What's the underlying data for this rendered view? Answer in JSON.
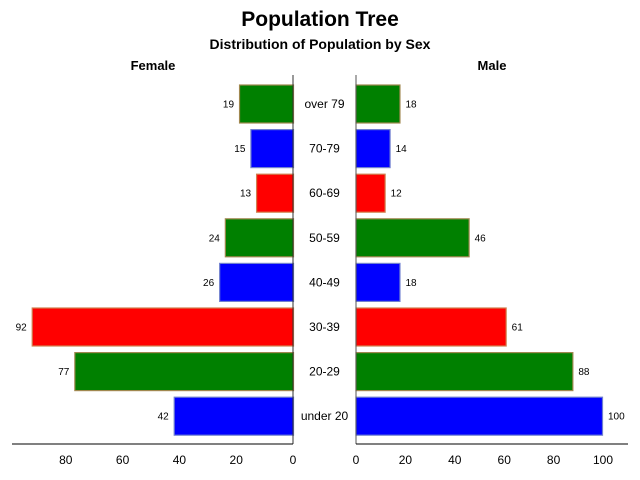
{
  "chart_data": {
    "type": "bar",
    "title": "Population Tree",
    "subtitle": "Distribution of Population by Sex",
    "orientation": "horizontal-back-to-back",
    "categories": [
      "over 79",
      "70-79",
      "60-69",
      "50-59",
      "40-49",
      "30-39",
      "20-29",
      "under 20"
    ],
    "series": [
      {
        "name": "Female",
        "values": [
          19,
          15,
          13,
          24,
          26,
          92,
          77,
          42
        ]
      },
      {
        "name": "Male",
        "values": [
          18,
          14,
          12,
          46,
          18,
          61,
          88,
          100
        ]
      }
    ],
    "bar_colors": [
      "#008000",
      "#0000ff",
      "#ff0000",
      "#008000",
      "#0000ff",
      "#ff0000",
      "#008000",
      "#0000ff"
    ],
    "bar_borders": [
      "#a08850",
      "#7080d0",
      "#d08050",
      "#a08850",
      "#7080d0",
      "#d08050",
      "#a08850",
      "#7080d0"
    ],
    "female_axis": {
      "ticks": [
        "80",
        "60",
        "40",
        "20",
        "0"
      ],
      "tick_values": [
        80,
        60,
        40,
        20,
        0
      ],
      "xlim": [
        0,
        99
      ]
    },
    "male_axis": {
      "ticks": [
        "0",
        "20",
        "40",
        "60",
        "80",
        "100"
      ],
      "tick_values": [
        0,
        20,
        40,
        60,
        80,
        100
      ],
      "xlim": [
        0,
        110
      ]
    },
    "grid": false
  }
}
